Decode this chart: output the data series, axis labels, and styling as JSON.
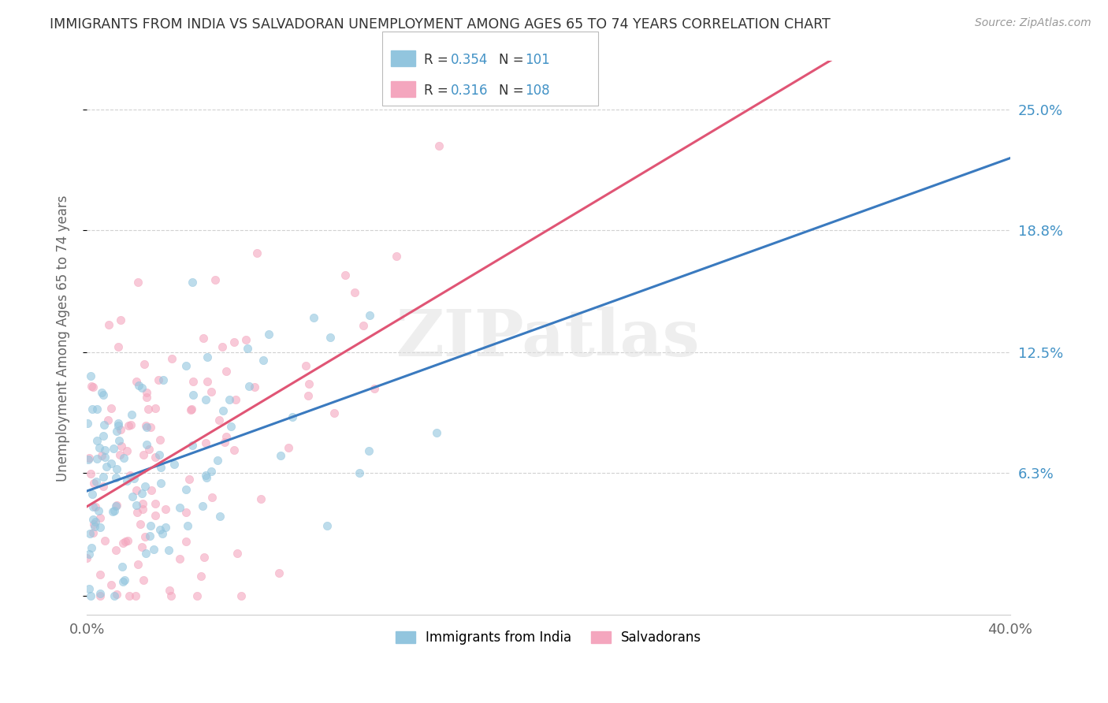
{
  "title": "IMMIGRANTS FROM INDIA VS SALVADORAN UNEMPLOYMENT AMONG AGES 65 TO 74 YEARS CORRELATION CHART",
  "source": "Source: ZipAtlas.com",
  "ylabel": "Unemployment Among Ages 65 to 74 years",
  "yticks": [
    0.0,
    0.063,
    0.125,
    0.188,
    0.25
  ],
  "ytick_labels": [
    "",
    "6.3%",
    "12.5%",
    "18.8%",
    "25.0%"
  ],
  "xmin": 0.0,
  "xmax": 0.4,
  "ymin": -0.01,
  "ymax": 0.275,
  "legend1_label": "Immigrants from India",
  "legend2_label": "Salvadorans",
  "R1": 0.354,
  "N1": 101,
  "R2": 0.316,
  "N2": 108,
  "blue_color": "#92c5de",
  "pink_color": "#f4a6be",
  "blue_line_color": "#3a7abf",
  "pink_line_color": "#e05575",
  "text_blue": "#4292c6",
  "watermark": "ZIPatlas",
  "background": "#ffffff",
  "grid_color": "#cccccc",
  "title_color": "#333333"
}
